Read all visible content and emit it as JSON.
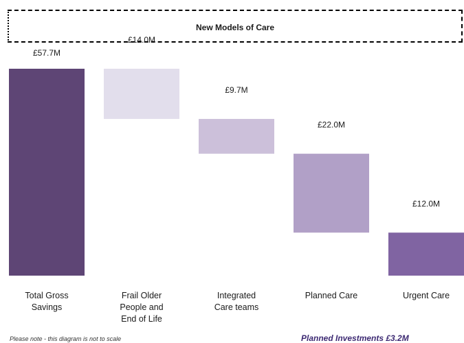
{
  "header": {
    "title": "New Models of Care"
  },
  "footer": {
    "note": "Please note - this diagram is not to scale",
    "investments": "Planned Investments £3.2M"
  },
  "chart_data": {
    "type": "waterfall",
    "title": "New Models of Care",
    "not_to_scale": true,
    "bars": [
      {
        "label": [
          "Total Gross",
          "Savings"
        ],
        "value": 57.7,
        "display": "£57.7M",
        "color": "#5e4575",
        "kind": "total"
      },
      {
        "label": [
          "Frail Older",
          "People and",
          "End of Life"
        ],
        "value": 14.0,
        "display": "£14.0M",
        "color": "#e2deec",
        "kind": "segment"
      },
      {
        "label": [
          "Integrated",
          "Care teams"
        ],
        "value": 9.7,
        "display": "£9.7M",
        "color": "#ccc0da",
        "kind": "segment"
      },
      {
        "label": [
          "Planned Care"
        ],
        "value": 22.0,
        "display": "£22.0M",
        "color": "#b1a0c7",
        "kind": "segment"
      },
      {
        "label": [
          "Urgent Care"
        ],
        "value": 12.0,
        "display": "£12.0M",
        "color": "#8064a2",
        "kind": "segment"
      }
    ]
  }
}
